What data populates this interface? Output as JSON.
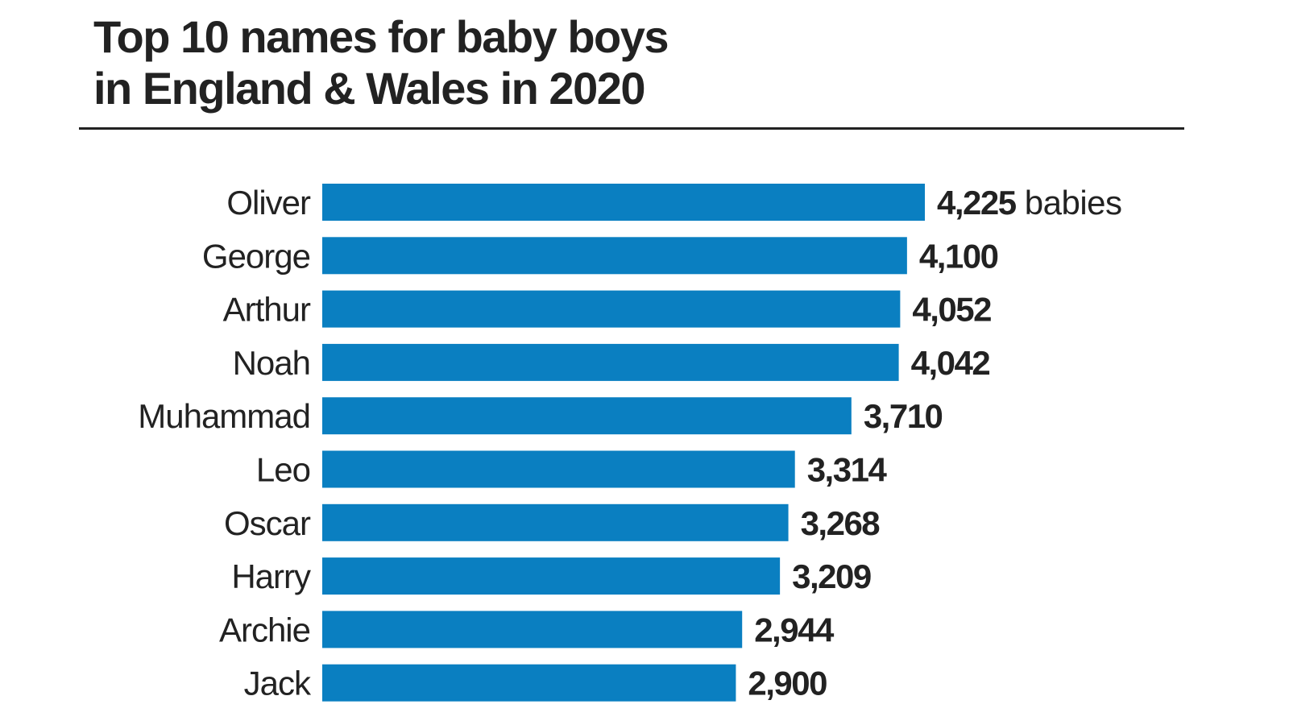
{
  "chart_data": {
    "type": "bar",
    "orientation": "horizontal",
    "title_line1": "Top 10 names for baby boys",
    "title_line2": "in England & Wales in 2020",
    "categories": [
      "Oliver",
      "George",
      "Arthur",
      "Noah",
      "Muhammad",
      "Leo",
      "Oscar",
      "Harry",
      "Archie",
      "Jack"
    ],
    "values": [
      4225,
      4100,
      4052,
      4042,
      3710,
      3314,
      3268,
      3209,
      2944,
      2900
    ],
    "value_labels": [
      "4,225",
      "4,100",
      "4,052",
      "4,042",
      "3,710",
      "3,314",
      "3,268",
      "3,209",
      "2,944",
      "2,900"
    ],
    "unit_label": "babies",
    "xlim": [
      0,
      4225
    ],
    "grid": false,
    "bar_color": "#0a7fc1"
  }
}
